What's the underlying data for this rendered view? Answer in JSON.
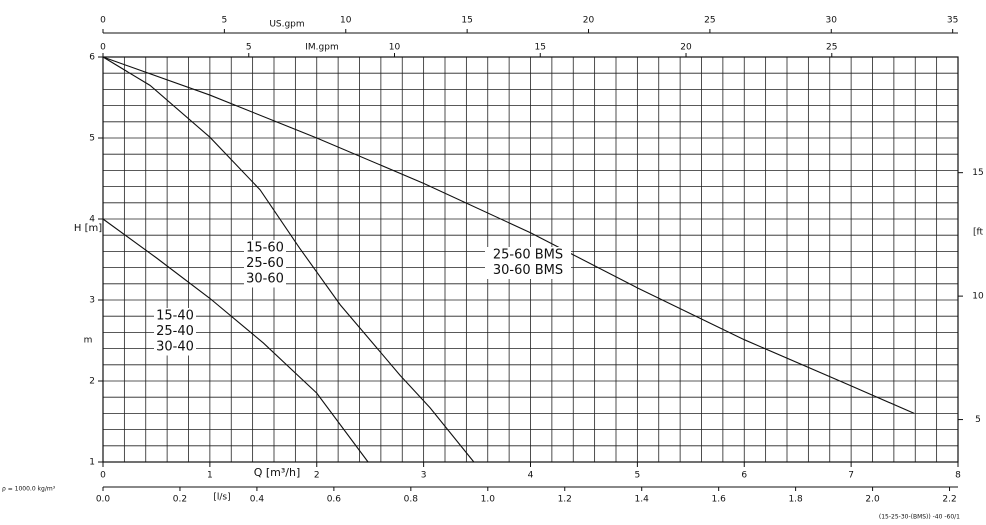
{
  "chart_data": {
    "type": "line",
    "xlabel": "Q [m³/h]",
    "ylabel": "H [m]",
    "yunit": "m",
    "xlim": [
      0,
      8
    ],
    "ylim": [
      1,
      6
    ],
    "xticks": [
      0,
      1,
      2,
      3,
      4,
      5,
      6,
      7,
      8
    ],
    "yticks": [
      1,
      2,
      3,
      4,
      5,
      6
    ],
    "grid": true,
    "minor_xticks": [
      0,
      0.2,
      0.4,
      0.6,
      0.8,
      1,
      1.2,
      1.4,
      1.6,
      1.8,
      2,
      2.2,
      2.4,
      2.6,
      2.8,
      3,
      3.2,
      3.4,
      3.6,
      3.8,
      4,
      4.2,
      4.4,
      4.6,
      4.8,
      5,
      5.2,
      5.4,
      5.6,
      5.8,
      6,
      6.2,
      6.4,
      6.6,
      6.8,
      7,
      7.2,
      7.4,
      7.6,
      7.8,
      8
    ],
    "minor_yticks": [
      1,
      1.2,
      1.4,
      1.6,
      1.8,
      2,
      2.2,
      2.4,
      2.6,
      2.8,
      3,
      3.2,
      3.4,
      3.6,
      3.8,
      4,
      4.2,
      4.4,
      4.6,
      4.8,
      5,
      5.2,
      5.4,
      5.6,
      5.8,
      6
    ],
    "ls_axis": {
      "label": "[l/s]",
      "lim": [
        0,
        2.222
      ],
      "ticks": [
        {
          "value": 0,
          "label": "0.0"
        },
        0.2,
        0.4,
        0.6,
        0.8,
        {
          "value": 1,
          "label": "1.0"
        },
        1.2,
        1.4,
        1.6,
        1.8,
        {
          "value": 2,
          "label": "2.0"
        },
        2.2
      ]
    },
    "us_axis": {
      "label": "US.gpm",
      "lim": [
        0,
        35.22
      ],
      "ticks": [
        0,
        5,
        10,
        15,
        20,
        25,
        30,
        35
      ]
    },
    "im_axis": {
      "label": "IM.gpm",
      "lim": [
        0,
        29.33
      ],
      "ticks": [
        0,
        5,
        10,
        15,
        20,
        25
      ]
    },
    "ft_axis": {
      "label": "[ft",
      "lim": [
        3.281,
        19.685
      ],
      "ticks": [
        5,
        10,
        15
      ]
    },
    "density_note": "ρ = 1000.0 kg/m³",
    "footnote": "(15-25-30-(BMS)) -40 -60/1",
    "series": [
      {
        "labels": [
          "15-40",
          "25-40",
          "30-40"
        ],
        "color": "#111111",
        "x": [
          0,
          0.5,
          1,
          1.5,
          2,
          2.48
        ],
        "values": [
          4,
          3.52,
          3.02,
          2.47,
          1.85,
          1
        ]
      },
      {
        "labels": [
          "15-60",
          "25-60",
          "30-60"
        ],
        "color": "#111111",
        "x": [
          0,
          0.44,
          1,
          1.47,
          1.84,
          2.22,
          2.78,
          3.06,
          3.47
        ],
        "values": [
          6,
          5.65,
          5.01,
          4.36,
          3.64,
          2.94,
          2.07,
          1.67,
          1
        ]
      },
      {
        "labels": [
          "25-60 BMS",
          "30-60 BMS"
        ],
        "color": "#111111",
        "x": [
          0,
          1,
          2,
          3,
          4,
          5,
          6,
          7,
          7.59
        ],
        "values": [
          6,
          5.53,
          5,
          4.44,
          3.83,
          3.15,
          2.51,
          1.94,
          1.6
        ]
      }
    ]
  }
}
